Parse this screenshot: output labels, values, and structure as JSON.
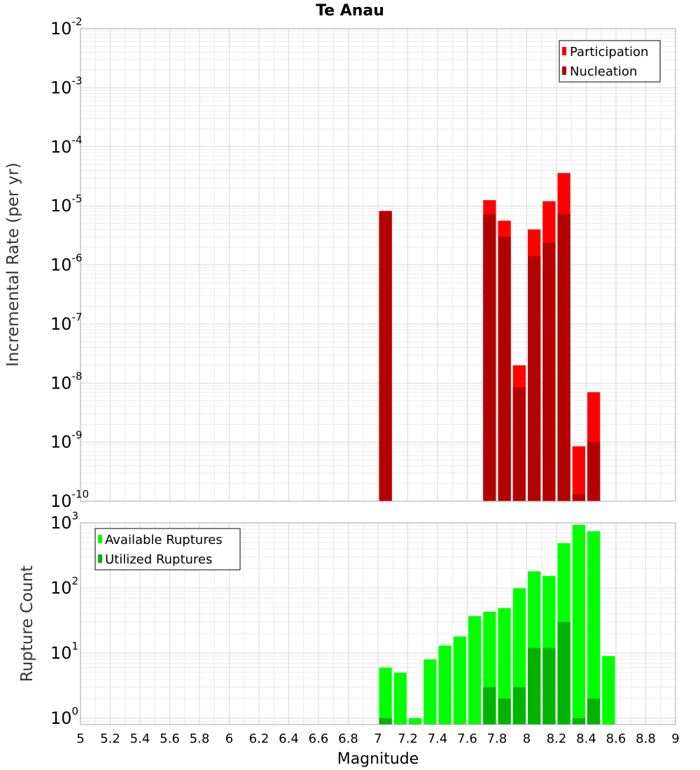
{
  "chart_data": [
    {
      "type": "bar",
      "title": "Te Anau",
      "xlabel": "",
      "ylabel": "Incremental Rate (per yr)",
      "yscale": "log",
      "ylim": [
        1e-10,
        0.01
      ],
      "xlim": [
        5,
        9
      ],
      "bin_width": 0.1,
      "grid": true,
      "legend_position": "top-right",
      "y_tick_bases": [
        "10",
        "10",
        "10",
        "10",
        "10",
        "10",
        "10",
        "10",
        "10"
      ],
      "y_tick_exponents": [
        "-10",
        "-9",
        "-8",
        "-7",
        "-6",
        "-5",
        "-4",
        "-3",
        "-2"
      ],
      "series": [
        {
          "name": "Participation",
          "color": "#ff0000",
          "x": [
            7.05,
            7.75,
            7.85,
            7.95,
            8.05,
            8.15,
            8.25,
            8.35,
            8.45
          ],
          "values": [
            8.2e-06,
            1.25e-05,
            5.6e-06,
            2e-08,
            4e-06,
            1.2e-05,
            3.6e-05,
            8.5e-10,
            7e-09
          ]
        },
        {
          "name": "Nucleation",
          "color": "#b30000",
          "x": [
            7.05,
            7.75,
            7.85,
            7.95,
            8.05,
            8.15,
            8.25,
            8.35,
            8.45
          ],
          "values": [
            8.2e-06,
            7.2e-06,
            3e-06,
            8.5e-09,
            1.4e-06,
            2.4e-06,
            7.2e-06,
            1.3e-10,
            1e-09
          ]
        }
      ]
    },
    {
      "type": "bar",
      "title": "",
      "xlabel": "Magnitude",
      "ylabel": "Rupture Count",
      "yscale": "log",
      "ylim": [
        0.8,
        1000
      ],
      "xlim": [
        5,
        9
      ],
      "bin_width": 0.1,
      "grid": true,
      "legend_position": "top-left",
      "y_tick_bases": [
        "10",
        "10",
        "10",
        "10"
      ],
      "y_tick_exponents": [
        "0",
        "1",
        "2",
        "3"
      ],
      "x_tick_labels": [
        "5",
        "5.2",
        "5.4",
        "5.6",
        "5.8",
        "6",
        "6.2",
        "6.4",
        "6.6",
        "6.8",
        "7",
        "7.2",
        "7.4",
        "7.6",
        "7.8",
        "8",
        "8.2",
        "8.4",
        "8.6",
        "8.8",
        "9"
      ],
      "series": [
        {
          "name": "Available Ruptures",
          "color": "#00ff00",
          "x": [
            7.05,
            7.15,
            7.25,
            7.35,
            7.45,
            7.55,
            7.65,
            7.75,
            7.85,
            7.95,
            8.05,
            8.15,
            8.25,
            8.35,
            8.45,
            8.55
          ],
          "values": [
            6,
            5,
            1,
            8,
            13,
            18,
            37,
            43,
            49,
            99,
            180,
            153,
            487,
            930,
            746,
            9
          ]
        },
        {
          "name": "Utilized Ruptures",
          "color": "#00b300",
          "x": [
            7.05,
            7.75,
            7.85,
            7.95,
            8.05,
            8.15,
            8.25,
            8.35,
            8.45
          ],
          "values": [
            1,
            3,
            2,
            3,
            12,
            12,
            30,
            1,
            2
          ]
        }
      ]
    }
  ]
}
